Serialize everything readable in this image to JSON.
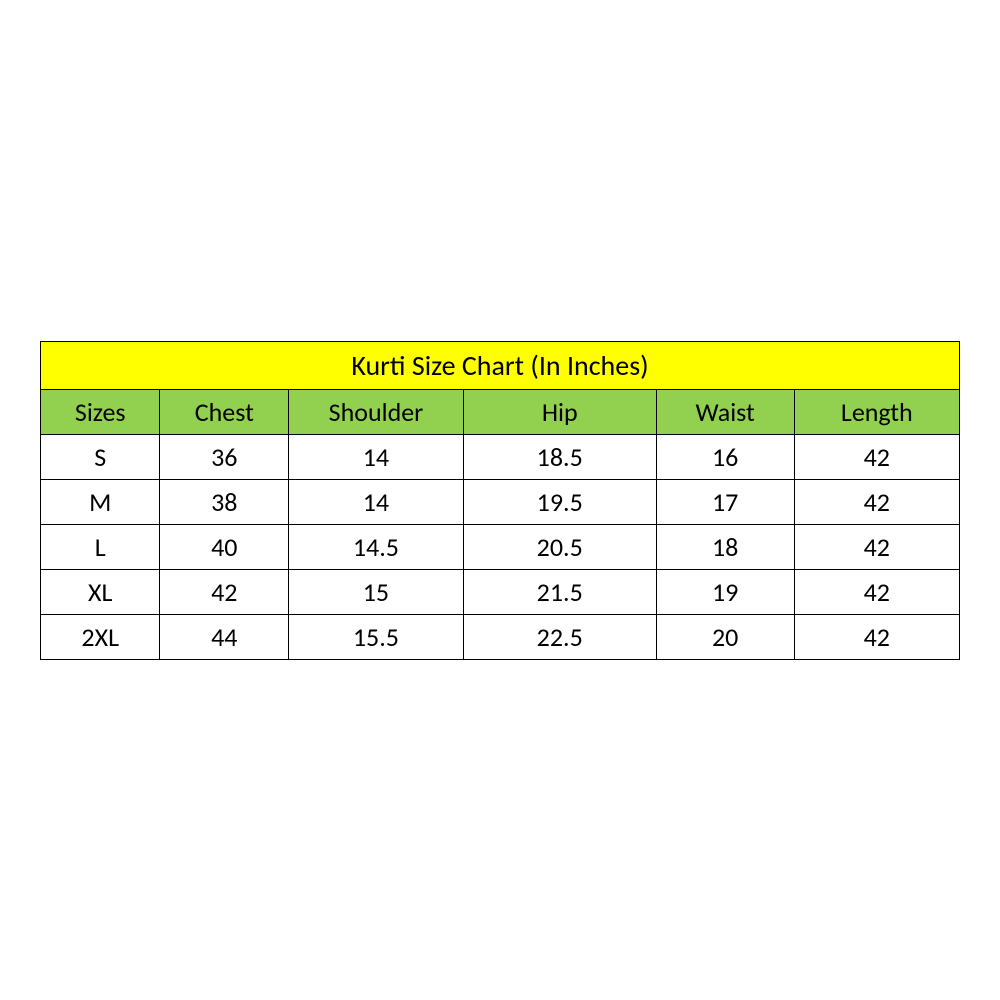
{
  "table": {
    "type": "table",
    "title": "Kurti Size Chart (In Inches)",
    "title_bg": "#ffff00",
    "title_fontsize": 28,
    "header_bg": "#92d050",
    "header_fontsize": 26,
    "cell_bg": "#ffffff",
    "cell_fontsize": 26,
    "border_color": "#000000",
    "text_color": "#000000",
    "font_family": "Calibri",
    "col_widths_pct": [
      13,
      14,
      19,
      21,
      15,
      18
    ],
    "columns": [
      "Sizes",
      "Chest",
      "Shoulder",
      "Hip",
      "Waist",
      "Length"
    ],
    "rows": [
      [
        "S",
        "36",
        "14",
        "18.5",
        "16",
        "42"
      ],
      [
        "M",
        "38",
        "14",
        "19.5",
        "17",
        "42"
      ],
      [
        "L",
        "40",
        "14.5",
        "20.5",
        "18",
        "42"
      ],
      [
        "XL",
        "42",
        "15",
        "21.5",
        "19",
        "42"
      ],
      [
        "2XL",
        "44",
        "15.5",
        "22.5",
        "20",
        "42"
      ]
    ]
  }
}
